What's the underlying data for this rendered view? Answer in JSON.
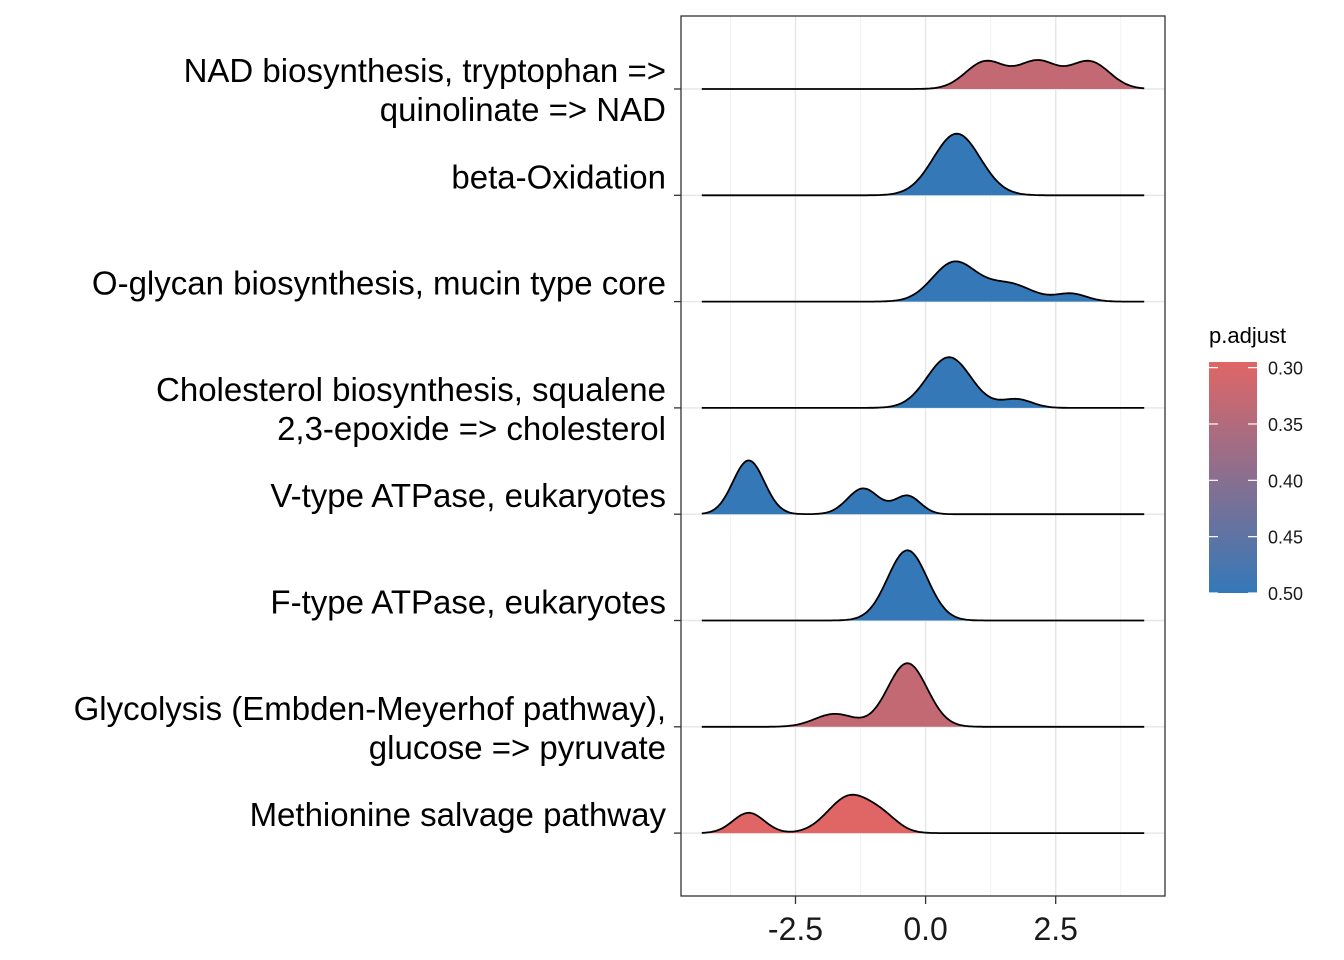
{
  "chart_data": {
    "type": "ridgeline",
    "xlabel": "",
    "ylabel": "",
    "xlim": [
      -4.7,
      4.6
    ],
    "x_ticks": [
      -2.5,
      0.0,
      2.5
    ],
    "x_tick_labels": [
      "-2.5",
      "0.0",
      "2.5"
    ],
    "grid": true,
    "legend": {
      "title": "p.adjust",
      "placement": "right",
      "min": 0.295,
      "max": 0.5,
      "ticks": [
        0.3,
        0.35,
        0.4,
        0.45,
        0.5
      ],
      "tick_labels": [
        "0.30",
        "0.35",
        "0.40",
        "0.45",
        "0.50"
      ],
      "color_low": "#E06666",
      "color_high": "#3478B8"
    },
    "series": [
      {
        "label_lines": [
          "NAD biosynthesis, tryptophan =>",
          "quinolinate => NAD"
        ],
        "p_adjust": 0.33,
        "range": [
          -4.3,
          4.2
        ],
        "peaks": [
          {
            "x": 1.15,
            "h": 0.7,
            "s": 0.38
          },
          {
            "x": 2.15,
            "h": 0.7,
            "s": 0.38
          },
          {
            "x": 3.15,
            "h": 0.7,
            "s": 0.38
          }
        ]
      },
      {
        "label_lines": [
          "beta-Oxidation"
        ],
        "p_adjust": 0.5,
        "range": [
          -4.3,
          4.2
        ],
        "peaks": [
          {
            "x": 0.6,
            "h": 1.58,
            "s": 0.45
          }
        ]
      },
      {
        "label_lines": [
          "O-glycan biosynthesis, mucin type core"
        ],
        "p_adjust": 0.5,
        "range": [
          -4.3,
          4.2
        ],
        "peaks": [
          {
            "x": 0.55,
            "h": 1.0,
            "s": 0.42
          },
          {
            "x": 1.6,
            "h": 0.45,
            "s": 0.45
          },
          {
            "x": 2.8,
            "h": 0.2,
            "s": 0.3
          }
        ]
      },
      {
        "label_lines": [
          "Cholesterol biosynthesis, squalene",
          "2,3-epoxide => cholesterol"
        ],
        "p_adjust": 0.5,
        "range": [
          -4.3,
          4.2
        ],
        "peaks": [
          {
            "x": 0.45,
            "h": 1.3,
            "s": 0.42
          },
          {
            "x": 1.75,
            "h": 0.22,
            "s": 0.3
          }
        ]
      },
      {
        "label_lines": [
          "V-type ATPase, eukaryotes"
        ],
        "p_adjust": 0.5,
        "range": [
          -4.3,
          4.2
        ],
        "peaks": [
          {
            "x": -3.4,
            "h": 1.38,
            "s": 0.3
          },
          {
            "x": -1.2,
            "h": 0.66,
            "s": 0.3
          },
          {
            "x": -0.35,
            "h": 0.47,
            "s": 0.25
          }
        ]
      },
      {
        "label_lines": [
          "F-type ATPase, eukaryotes"
        ],
        "p_adjust": 0.5,
        "range": [
          -4.3,
          4.2
        ],
        "peaks": [
          {
            "x": -0.35,
            "h": 1.8,
            "s": 0.38
          }
        ]
      },
      {
        "label_lines": [
          "Glycolysis (Embden-Meyerhof pathway),",
          "glucose => pyruvate"
        ],
        "p_adjust": 0.33,
        "range": [
          -4.3,
          4.2
        ],
        "peaks": [
          {
            "x": -0.35,
            "h": 1.63,
            "s": 0.38
          },
          {
            "x": -1.75,
            "h": 0.33,
            "s": 0.38
          }
        ]
      },
      {
        "label_lines": [
          "Methionine salvage pathway"
        ],
        "p_adjust": 0.295,
        "range": [
          -4.3,
          4.2
        ],
        "peaks": [
          {
            "x": -3.4,
            "h": 0.52,
            "s": 0.3
          },
          {
            "x": -1.45,
            "h": 0.95,
            "s": 0.42
          },
          {
            "x": -0.8,
            "h": 0.3,
            "s": 0.3
          }
        ]
      }
    ]
  }
}
